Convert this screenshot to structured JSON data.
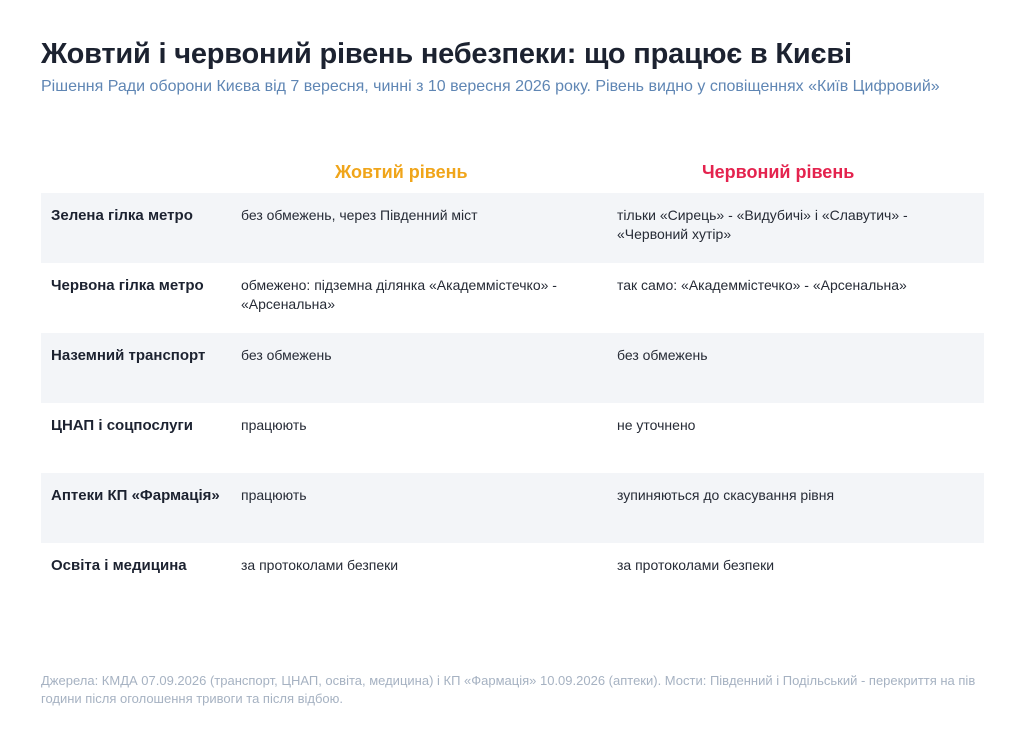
{
  "header": {
    "title": "Жовтий і червоний рівень небезпеки: що працює в Києві",
    "subtitle": "Рішення Ради оборони Києва від 7 вересня, чинні з 10 вересня 2026 року. Рівень видно у сповіщеннях «Київ Цифровий»"
  },
  "columns": {
    "yellow": "Жовтий рівень",
    "red": "Червоний рівень"
  },
  "colors": {
    "yellow": "#f0a51a",
    "red": "#e4234e"
  },
  "rows": [
    {
      "label": "Зелена гілка метро",
      "yellow": "без обмежень, через Південний міст",
      "red": "тільки «Сирець» - «Видубичі» і «Славутич» - «Червоний хутір»"
    },
    {
      "label": "Червона гілка метро",
      "yellow": "обмежено: підземна ділянка «Академмістечко» - «Арсенальна»",
      "red": "так само: «Академмістечко» - «Арсенальна»"
    },
    {
      "label": "Наземний транспорт",
      "yellow": "без обмежень",
      "red": "без обмежень"
    },
    {
      "label": "ЦНАП і соцпослуги",
      "yellow": "працюють",
      "red": "не уточнено"
    },
    {
      "label": "Аптеки КП «Фармація»",
      "yellow": "працюють",
      "red": "зупиняються до скасування рівня"
    },
    {
      "label": "Освіта і медицина",
      "yellow": "за протоколами безпеки",
      "red": "за протоколами безпеки"
    }
  ],
  "footer": {
    "source": "Джерела: КМДА 07.09.2026 (транспорт, ЦНАП, освіта, медицина) і КП «Фармація» 10.09.2026 (аптеки). Мости: Південний і Подільський - перекриття на пів години після оголошення тривоги та після відбою."
  }
}
